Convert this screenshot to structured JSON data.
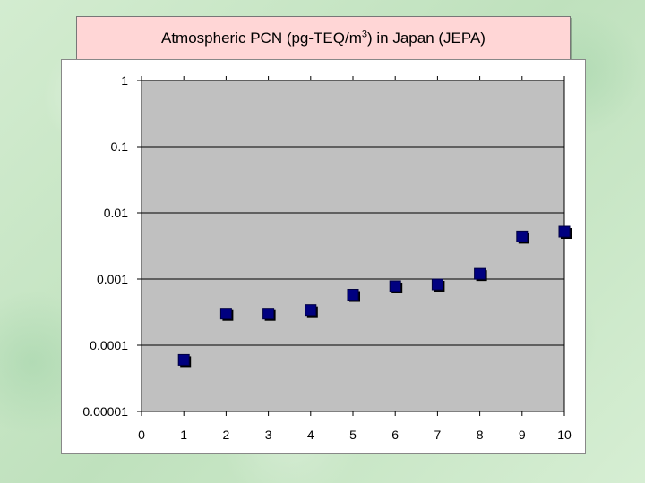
{
  "title": {
    "pre": "Atmospheric PCN  (pg-TEQ/m",
    "sup": "3",
    "post": ") in Japan (JEPA)"
  },
  "colors": {
    "plot_background": "#c0c0c0",
    "marker": "#000080",
    "title_background": "#ffd6d6"
  },
  "chart_data": {
    "type": "scatter",
    "title": "Atmospheric PCN  (pg-TEQ/m3) in Japan (JEPA)",
    "xlabel": "",
    "ylabel": "",
    "xlim": [
      0,
      10
    ],
    "ylim": [
      1e-05,
      1
    ],
    "yscale": "log",
    "grid": "horizontal",
    "legend": "none",
    "x_ticks": [
      "0",
      "1",
      "2",
      "3",
      "4",
      "5",
      "6",
      "7",
      "8",
      "9",
      "10"
    ],
    "y_ticks": [
      "1",
      "0.1",
      "0.01",
      "0.001",
      "0.0001",
      "0.00001"
    ],
    "y_tick_values": [
      1,
      0.1,
      0.01,
      0.001,
      0.0001,
      1e-05
    ],
    "x": [
      1,
      2,
      3,
      4,
      5,
      6,
      7,
      8,
      9,
      10
    ],
    "y": [
      6e-05,
      0.0003,
      0.0003,
      0.00034,
      0.00058,
      0.00078,
      0.00083,
      0.0012,
      0.0044,
      0.0052
    ]
  }
}
